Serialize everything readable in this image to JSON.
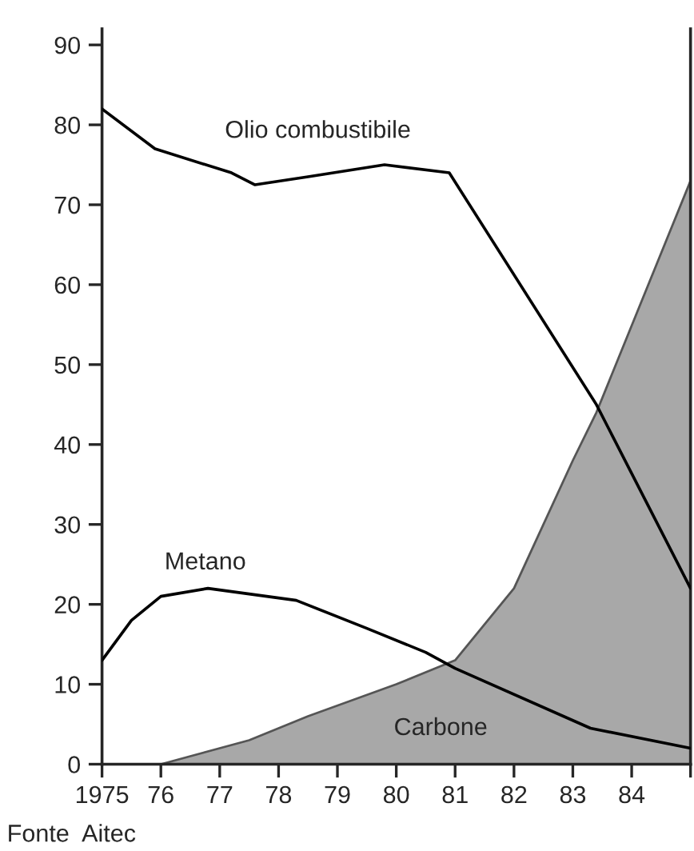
{
  "chart_data": {
    "type": "line",
    "series": [
      {
        "name": "Carbone",
        "type": "area",
        "color": "#a8a8a8",
        "x": [
          1975,
          1976,
          1976.5,
          1977.5,
          1978.5,
          1980,
          1981,
          1982,
          1983,
          1983.4,
          1985
        ],
        "values": [
          0,
          0,
          1,
          3,
          6,
          10,
          13,
          22,
          38,
          44,
          73
        ]
      },
      {
        "name": "Olio combustibile",
        "color": "#000000",
        "x": [
          1975,
          1975.9,
          1977.2,
          1977.6,
          1978.5,
          1979.8,
          1980.9,
          1983.4,
          1985
        ],
        "values": [
          82,
          77,
          74,
          72.5,
          73.5,
          75,
          74,
          45,
          22
        ]
      },
      {
        "name": "Metano",
        "color": "#000000",
        "x": [
          1975,
          1975.5,
          1976,
          1976.8,
          1978.3,
          1979.5,
          1980.5,
          1981,
          1983.3,
          1985
        ],
        "values": [
          13,
          18,
          21,
          22,
          20.5,
          17,
          14,
          12,
          4.5,
          2
        ]
      }
    ],
    "xlim": [
      1975,
      1985
    ],
    "xticks": [
      1975,
      {
        "value": 1976,
        "label": "76"
      },
      {
        "value": 1977,
        "label": "77"
      },
      {
        "value": 1978,
        "label": "78"
      },
      {
        "value": 1979,
        "label": "79"
      },
      {
        "value": 1980,
        "label": "80"
      },
      {
        "value": 1981,
        "label": "81"
      },
      {
        "value": 1982,
        "label": "82"
      },
      {
        "value": 1983,
        "label": "83"
      },
      {
        "value": 1984,
        "label": "84"
      },
      {
        "value": 1985,
        "label": null
      }
    ],
    "ylim": [
      0,
      92
    ],
    "yticks": [
      0,
      10,
      20,
      30,
      40,
      50,
      60,
      70,
      80,
      90
    ],
    "annotations": [
      "Fonte  Aitec"
    ],
    "grid": false,
    "marker": "none",
    "line_style": "solid"
  }
}
